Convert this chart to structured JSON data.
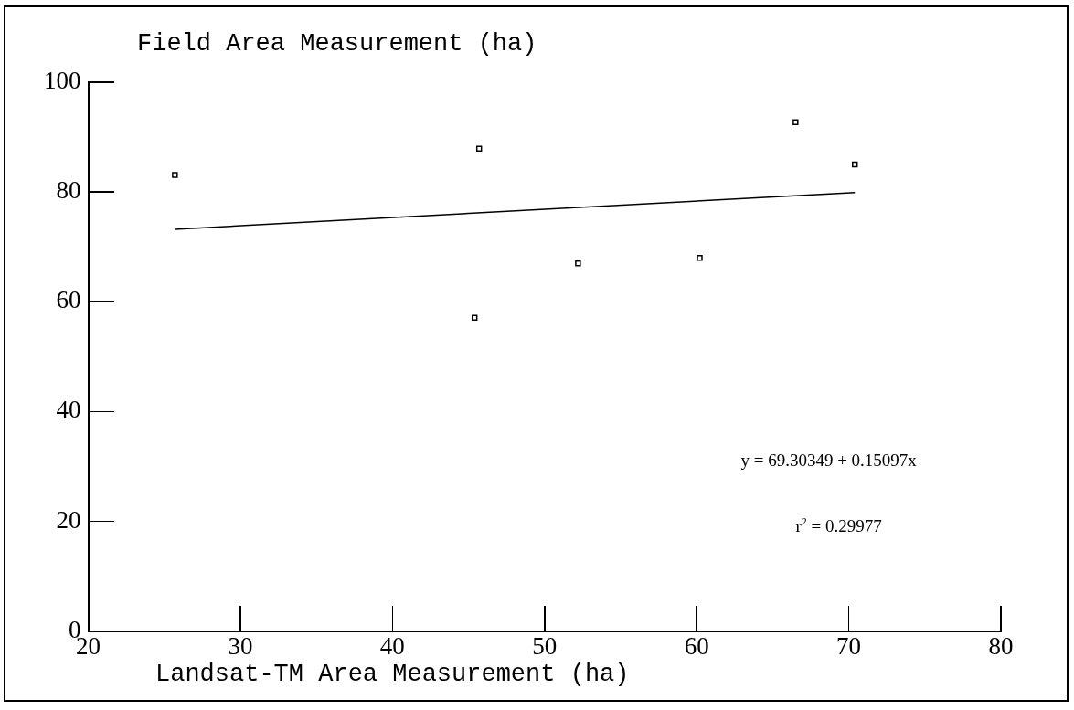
{
  "chart_data": {
    "type": "scatter",
    "xlabel": "Landsat-TM Area Measurement (ha)",
    "ylabel": "Field Area Measurement (ha)",
    "annotations": [
      "y = 69.30349 + 0.15097x",
      "r$^{2}$ = 0.29977"
    ],
    "xlim": [
      20,
      80
    ],
    "xticks": [
      20,
      30,
      40,
      50,
      60,
      70,
      80
    ],
    "ylim": [
      0,
      100
    ],
    "yticks": [
      0,
      20,
      40,
      60,
      80,
      100
    ],
    "grid": false,
    "legend": false,
    "marker": "square",
    "series": [
      {
        "type": "scatter",
        "color": "#000000",
        "x": [
          25.7,
          45.7,
          45.4,
          52.2,
          60.2,
          66.5,
          70.4
        ],
        "values": [
          83.1,
          87.9,
          57.1,
          67.0,
          68.0,
          92.7,
          85.0
        ]
      },
      {
        "type": "line",
        "color": "#000000",
        "marker": "none",
        "line_style": "solid",
        "x": [
          25.7,
          70.4
        ],
        "values": [
          73.2,
          79.9
        ]
      }
    ]
  }
}
